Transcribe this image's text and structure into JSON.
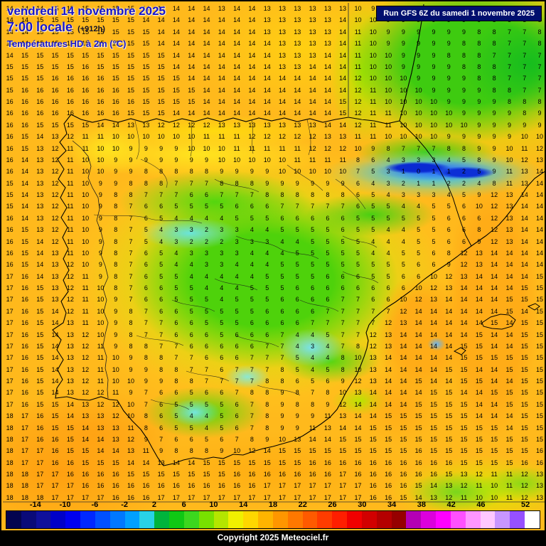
{
  "header": {
    "date": "vendredi 14 novembre 2025",
    "time": "7:00 locale",
    "forecast_offset": "(+912h)",
    "parameter": "Températures HD à 2m (°C)"
  },
  "run_info": {
    "label": "Run GFS 6Z du samedi 1 novembre 2025"
  },
  "copyright": "Copyright 2025 Meteociel.fr",
  "colors": {
    "header_text": "#1616cc",
    "run_box_bg": "#000f6e",
    "run_box_text": "#ffffff",
    "copyright_bg": "#000000",
    "copyright_text": "#ffffff",
    "warm_base": "#ffb91c",
    "cold_core": "#0a2ad2"
  },
  "scale": {
    "unit": "°C",
    "min": -18,
    "max": 54,
    "labels": [
      -14,
      -10,
      -6,
      -2,
      2,
      6,
      10,
      14,
      18,
      22,
      26,
      30,
      34,
      38,
      42,
      46,
      52
    ],
    "colors": [
      "#04044f",
      "#0a0a78",
      "#10109b",
      "#0000c8",
      "#0000f0",
      "#0028ff",
      "#0050ff",
      "#0078ff",
      "#00a0ff",
      "#28d2e6",
      "#00b43c",
      "#0fc814",
      "#3cd71e",
      "#78e100",
      "#b4e600",
      "#f0f000",
      "#ffd700",
      "#ffb400",
      "#ff9600",
      "#ff7800",
      "#ff5a00",
      "#ff3c00",
      "#ff1e00",
      "#f00000",
      "#d20000",
      "#b40000",
      "#960000",
      "#b400b4",
      "#dc00dc",
      "#ff00ff",
      "#ff50ff",
      "#ff96ff",
      "#ffc8ff",
      "#c896ff",
      "#9650ff",
      "#ffffff"
    ]
  },
  "temperature_grid": {
    "rows": [
      "14 14 14 15 15 15 15 15 15 14 14 14 14 14 13 14 14 13 13 13 13 13 13 10 9 9 9 9 9 9 9 9 9 9 8 9",
      "14 14 15 15 15 15 15 15 15 14 14 14 14 14 14 14 14 13 13 13 13 13 14 10 10 9 9 9 9 9 9 9 8 8 8 8",
      "14 14 15 15 15 15 15 15 15 15 14 14 14 14 14 14 14 13 13 13 13 13 14 11 10 9 9 9 9 9 9 8 8 7 7 8",
      "14 14 15 15 15 15 15 15 15 15 14 14 14 14 14 14 14 14 13 13 13 13 14 11 10 9 9 9 9 9 8 8 8 7 7 8",
      "14 15 15 15 15 15 15 15 15 15 15 14 14 14 14 14 14 14 13 13 13 14 14 11 10 10 9 9 9 8 8 8 7 7 7 7",
      "15 15 15 15 15 16 15 15 15 15 15 14 14 14 14 14 14 14 13 13 14 14 14 11 10 10 9 9 9 9 8 8 8 7 7 7",
      "15 15 15 16 16 16 16 15 15 15 15 15 14 14 14 14 14 14 14 14 14 14 14 12 10 10 10 9 9 9 9 8 8 7 7 7",
      "15 16 16 16 16 16 16 16 15 15 15 15 15 14 14 14 14 14 14 14 14 14 14 12 11 10 10 10 9 9 9 9 8 8 7 7",
      "16 16 16 16 16 16 16 16 16 15 15 15 15 14 14 14 14 14 14 14 14 14 15 12 11 10 10 10 10 9 9 9 9 8 8 8",
      "16 16 16 16 16 16 16 16 15 15 15 14 14 14 14 14 14 14 14 14 14 14 15 12 11 11 10 10 10 10 9 9 9 9 8 9",
      "16 16 15 15 15 15 14 14 13 13 12 12 12 12 13 13 13 13 13 13 13 14 14 12 11 11 10 10 10 10 10 9 9 9 9 9",
      "16 15 14 13 12 11 11 10 10 10 10 10 10 11 11 11 12 12 12 12 12 13 13 11 11 10 10 10 10 9 9 9 9 9 10 10",
      "16 15 13 12 11 11 10 10 9 9 9 9 10 10 10 11 11 11 11 11 12 12 12 10 9 8 7 7 7 8 8 9 9 10 11 12",
      "16 14 13 12 11 10 10 9 9 9 9 9 9 9 10 10 10 10 10 11 11 11 11 8 6 4 3 3 3 4 5 8 9 10 12 13",
      "16 14 13 12 11 10 10 9 9 8 8 8 8 8 9 9 9 9 10 10 10 10 10 7 5 3 1 0 1 1 2 5 9 11 13 14",
      "15 14 13 12 11 10 9 9 8 8 8 7 7 7 8 8 8 9 9 9 9 9 9 6 4 3 2 1 1 2 2 4 8 11 13 14",
      "15 14 13 12 11 10 9 8 8 7 7 7 6 6 7 7 7 8 8 8 8 8 8 6 5 4 3 3 3 4 5 9 12 13 14 14",
      "15 14 13 12 11 10 9 8 7 6 6 5 5 5 5 6 6 6 7 7 7 7 7 6 5 5 4 4 5 5 6 10 12 13 14 14",
      "16 14 13 12 11 10 9 8 7 6 5 4 4 4 4 5 5 5 6 6 6 6 6 5 5 5 5 5 5 6 6 6 12 13 14 14",
      "16 15 13 12 11 10 9 8 7 5 4 3 3 2 3 3 4 4 5 5 5 5 6 5 5 4 4 5 5 6 6 8 12 13 14 14",
      "16 15 14 12 11 10 9 8 7 5 4 3 2 2 2 3 3 3 4 4 5 5 5 5 4 4 4 5 5 6 6 9 12 13 14 14",
      "16 15 14 13 11 10 9 8 7 6 5 4 3 3 3 3 4 4 4 5 5 5 5 5 4 4 5 5 6 8 12 13 14 14 14 14",
      "16 15 14 13 12 10 9 8 7 6 5 4 4 3 3 4 4 4 5 5 5 5 5 5 5 5 5 6 6 9 12 13 14 14 14 14",
      "17 16 14 13 12 11 9 8 7 6 5 5 4 4 4 4 4 5 5 5 5 6 6 6 5 5 6 6 10 12 13 14 14 14 14 15",
      "17 16 15 13 12 11 10 8 7 6 6 5 5 4 4 4 5 5 5 6 6 6 6 6 6 6 6 10 12 13 14 14 14 14 15 15",
      "17 16 15 13 12 11 10 9 7 6 6 5 5 5 4 5 5 5 6 6 6 6 7 7 6 6 10 12 13 14 14 14 14 15 15 15",
      "17 16 15 14 12 11 10 9 8 7 6 6 5 5 5 5 5 6 6 6 6 7 7 7 7 7 12 14 14 14 14 14 14 15 14 15",
      "17 16 15 14 13 11 10 9 8 7 7 6 6 5 5 5 6 6 6 6 7 7 7 7 7 12 13 14 14 14 14 14 15 14 15 15",
      "17 16 15 14 13 12 10 9 8 7 7 6 6 6 5 6 6 6 7 4 4 5 7 7 12 13 14 14 14 14 14 15 14 14 15 15",
      "17 16 15 14 13 12 11 9 8 8 7 7 6 6 6 6 6 7 7 4 3 4 7 8 12 13 14 14 14 14 15 15 14 14 15 15",
      "17 16 15 14 13 12 11 10 9 8 8 7 7 6 6 6 7 7 7 5 4 4 8 10 13 14 14 14 14 14 15 15 15 15 15 15",
      "17 16 15 14 13 12 11 10 9 9 8 8 7 7 6 7 7 7 8 5 4 5 8 10 13 14 14 14 14 15 15 14 14 15 15 15",
      "17 16 15 14 13 12 11 10 10 9 9 8 8 7 7 7 7 8 8 6 5 6 9 12 13 14 14 15 14 14 15 15 14 14 15 15",
      "17 16 15 14 13 12 12 11 9 7 6 6 5 6 6 7 8 8 9 8 7 8 10 13 14 14 14 14 15 15 14 14 15 15 15 15",
      "17 16 15 15 14 13 12 12 10 7 6 5 5 5 5 6 7 8 9 8 8 9 12 14 14 14 14 15 15 15 15 14 14 15 15 15",
      "18 17 16 15 14 13 13 12 10 8 6 5 4 4 5 6 7 8 9 9 9 11 13 14 14 15 15 15 15 15 15 14 14 14 15 15",
      "18 17 16 15 15 14 13 13 11 8 6 5 5 4 5 6 7 8 9 9 11 13 14 14 15 15 15 15 15 15 15 15 15 14 15 15",
      "18 17 16 16 15 14 14 13 12 9 7 6 6 5 6 7 8 9 10 13 14 14 15 15 15 15 15 15 15 15 15 15 15 15 15 15",
      "18 17 17 16 15 15 14 14 13 11 9 8 8 8 9 10 12 14 15 15 15 15 15 15 15 15 15 16 15 15 15 15 15 15 15 16",
      "18 17 17 16 16 15 15 15 14 14 13 14 14 15 15 15 15 15 15 15 16 16 16 16 16 16 16 16 16 16 15 15 15 15 16 16",
      "18 18 17 17 16 16 16 16 15 15 15 15 15 15 15 16 16 16 16 16 16 16 17 16 16 16 16 16 16 15 13 12 11 11 12 13",
      "18 18 17 17 17 16 16 16 16 16 16 16 16 16 16 16 16 17 17 17 17 17 17 17 16 16 16 15 14 13 12 11 10 11 12 13",
      "18 18 18 17 17 17 17 16 16 16 17 17 17 17 17 17 17 17 17 17 17 17 17 17 16 16 15 14 13 12 11 10 10 11 12 13"
    ]
  }
}
